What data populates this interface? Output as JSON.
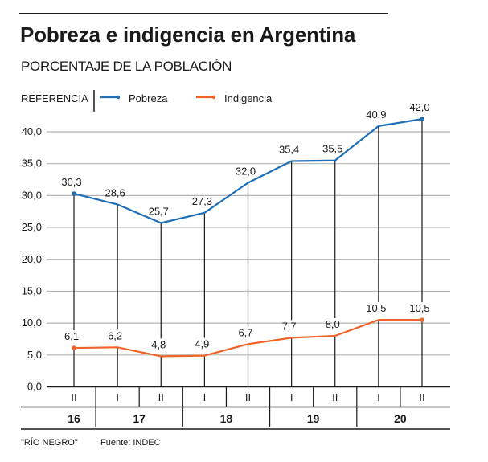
{
  "header": {
    "title": "Pobreza e indigencia en Argentina",
    "subtitle": "PORCENTAJE DE LA POBLACIÓN"
  },
  "legend": {
    "label": "REFERENCIA",
    "items": [
      {
        "name": "Pobreza",
        "color": "#1f6fb5"
      },
      {
        "name": "Indigencia",
        "color": "#f0642a"
      }
    ]
  },
  "footer": {
    "credit": "\"RÍO NEGRO\"",
    "source": "Fuente: INDEC"
  },
  "chart_data": {
    "type": "line",
    "title": "Pobreza e indigencia en Argentina",
    "subtitle": "PORCENTAJE DE LA POBLACIÓN",
    "xlabel": "",
    "ylabel": "",
    "ylim": [
      0,
      40
    ],
    "yticks": [
      "0,0",
      "5,0",
      "10,0",
      "15,0",
      "20,0",
      "25,0",
      "30,0",
      "35,0",
      "40,0"
    ],
    "grid": true,
    "legend_position": "top-left",
    "categories": [
      "II",
      "I",
      "II",
      "I",
      "II",
      "I",
      "II",
      "I",
      "II"
    ],
    "years": [
      {
        "label": "16",
        "span": 1
      },
      {
        "label": "17",
        "span": 2
      },
      {
        "label": "18",
        "span": 2
      },
      {
        "label": "19",
        "span": 2
      },
      {
        "label": "20",
        "span": 2
      }
    ],
    "series": [
      {
        "name": "Pobreza",
        "color": "#1f6fb5",
        "values": [
          30.3,
          28.6,
          25.7,
          27.3,
          32.0,
          35.4,
          35.5,
          40.9,
          42.0
        ],
        "labels": [
          "30,3",
          "28,6",
          "25,7",
          "27,3",
          "32,0",
          "35,4",
          "35,5",
          "40,9",
          "42,0"
        ]
      },
      {
        "name": "Indigencia",
        "color": "#f0642a",
        "values": [
          6.1,
          6.2,
          4.8,
          4.9,
          6.7,
          7.7,
          8.0,
          10.5,
          10.5
        ],
        "labels": [
          "6,1",
          "6,2",
          "4,8",
          "4,9",
          "6,7",
          "7,7",
          "8,0",
          "10,5",
          "10,5"
        ]
      }
    ]
  }
}
